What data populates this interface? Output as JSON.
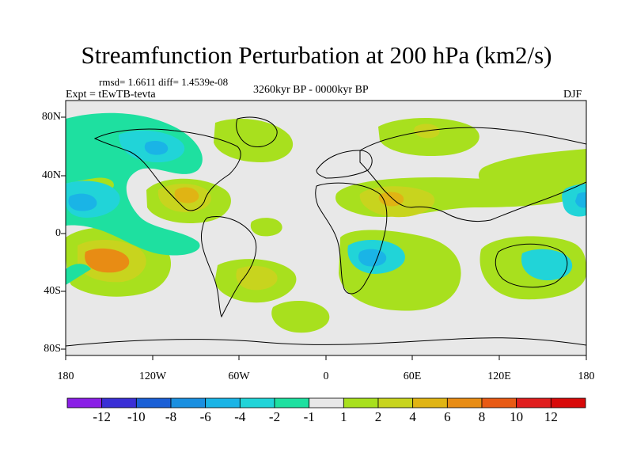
{
  "title": "Streamfunction Perturbation at 200 hPa (km2/s)",
  "stats": "rmsd= 1.6611  diff= 1.4539e-08",
  "experiment": "Expt = tEwTB-tevta",
  "period": "3260kyr BP - 0000kyr BP",
  "season": "DJF",
  "lat_labels": [
    "80N",
    "40N",
    "0",
    "40S",
    "80S"
  ],
  "lon_labels": [
    "180",
    "120W",
    "60W",
    "0",
    "60E",
    "120E",
    "180"
  ],
  "colorbar": {
    "labels": [
      "-12",
      "-10",
      "-8",
      "-6",
      "-4",
      "-2",
      "-1",
      "1",
      "2",
      "4",
      "6",
      "8",
      "10",
      "12"
    ],
    "colors": [
      "#8a1fe6",
      "#3a2fd6",
      "#1a5fd6",
      "#1a8fe0",
      "#1ab4e6",
      "#21d4d8",
      "#1ee0a0",
      "#e8e8e8",
      "#a8e01e",
      "#c8d41e",
      "#e0b414",
      "#e88c14",
      "#e85a14",
      "#e01e1e",
      "#d80a0a"
    ]
  },
  "colors": {
    "ocean_land_neutral": "#e8e8e8",
    "pos1": "#a8e01e",
    "pos2": "#c8d41e",
    "pos3": "#e0b414",
    "pos4": "#e88c14",
    "neg1": "#1ee0a0",
    "neg2": "#21d4d8",
    "neg3": "#1ab4e6",
    "neg4": "#1a8fe0"
  }
}
